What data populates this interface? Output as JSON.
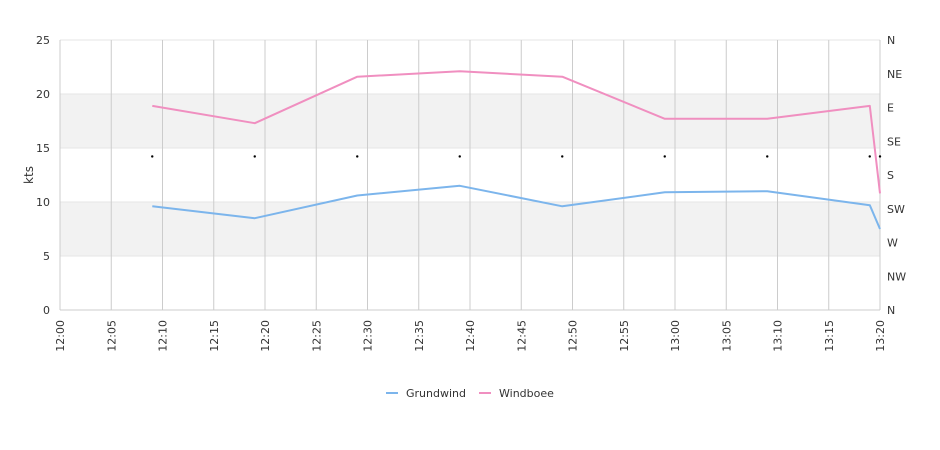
{
  "chart_data": {
    "type": "line",
    "ylabel": "kts",
    "ylim": [
      0,
      25
    ],
    "y_ticks": [
      "0",
      "5",
      "10",
      "15",
      "20",
      "25"
    ],
    "x_ticks": [
      "12:00",
      "12:05",
      "12:10",
      "12:15",
      "12:20",
      "12:25",
      "12:30",
      "12:35",
      "12:40",
      "12:45",
      "12:50",
      "12:55",
      "13:00",
      "13:05",
      "13:10",
      "13:15",
      "13:20"
    ],
    "xlim": [
      "12:00",
      "13:20"
    ],
    "direction_axis_labels": [
      "N",
      "NW",
      "W",
      "SW",
      "S",
      "SE",
      "E",
      "NE",
      "N"
    ],
    "bands": [
      [
        5,
        10
      ],
      [
        15,
        20
      ]
    ],
    "band_color": "#f2f2f2",
    "grid": true,
    "legend_position": "bottom",
    "series": [
      {
        "name": "Grundwind",
        "color": "#7cb5ec",
        "x": [
          "12:09",
          "12:19",
          "12:29",
          "12:39",
          "12:49",
          "12:59",
          "13:09",
          "13:19",
          "13:20"
        ],
        "values": [
          9.6,
          8.5,
          10.6,
          11.5,
          9.6,
          10.9,
          11.0,
          9.7,
          7.5
        ]
      },
      {
        "name": "Windboee",
        "color": "#f08fc0",
        "x": [
          "12:09",
          "12:19",
          "12:29",
          "12:39",
          "12:49",
          "12:59",
          "13:09",
          "13:19",
          "13:20"
        ],
        "values": [
          18.9,
          17.3,
          21.6,
          22.1,
          21.6,
          17.7,
          17.7,
          18.9,
          10.8
        ]
      }
    ],
    "direction_points": {
      "x": [
        "12:09",
        "12:19",
        "12:29",
        "12:39",
        "12:49",
        "12:59",
        "13:09",
        "13:19",
        "13:20"
      ],
      "values": [
        "SW",
        "SW",
        "SW",
        "SW",
        "SW",
        "SW",
        "SW",
        "SW",
        "SW"
      ]
    }
  }
}
